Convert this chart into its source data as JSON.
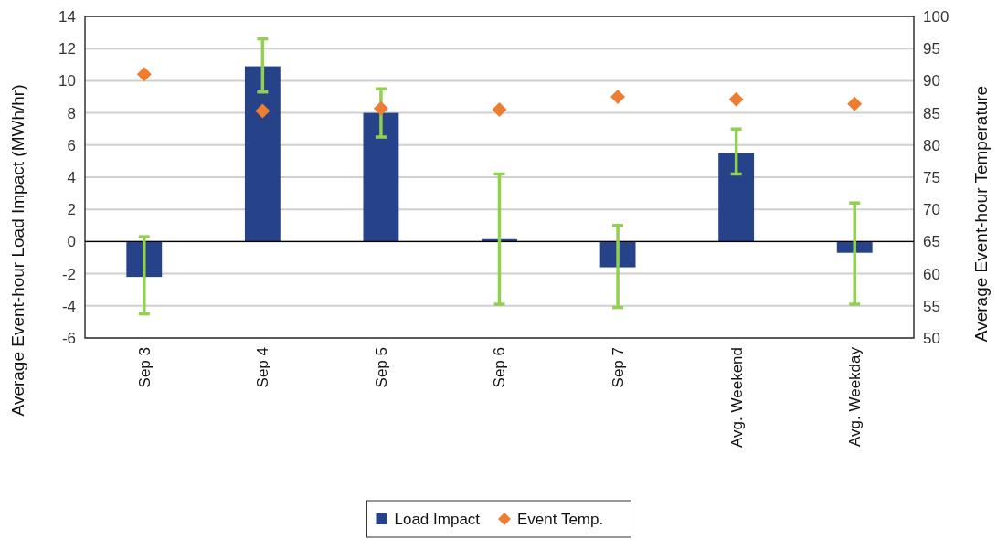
{
  "chart_data": {
    "type": "bar",
    "categories": [
      "Sep 3",
      "Sep 4",
      "Sep 5",
      "Sep 6",
      "Sep 7",
      "Avg. Weekend",
      "Avg. Weekday"
    ],
    "ylabel": "Average Event-hour Load Impact (MWh/hr)",
    "y2label": "Average Event-hour Temperature",
    "series": [
      {
        "name": "Load Impact",
        "color": "#264389",
        "values": [
          -2.2,
          10.9,
          8.0,
          0.15,
          -1.6,
          5.5,
          -0.7
        ],
        "errors": [
          [
            -4.5,
            0.3
          ],
          [
            9.3,
            12.6
          ],
          [
            6.5,
            9.5
          ],
          [
            -3.9,
            4.2
          ],
          [
            -4.1,
            1.0
          ],
          [
            4.2,
            7.0
          ],
          [
            -3.9,
            2.4
          ]
        ]
      },
      {
        "name": "Event Temp.",
        "type": "scatter",
        "axis": "y2",
        "color": "#ed7d31",
        "marker": "diamond",
        "values": [
          91.0,
          85.3,
          85.7,
          85.5,
          87.5,
          87.1,
          86.4
        ]
      }
    ],
    "ylim": [
      -6,
      14
    ],
    "yticks": [
      -6,
      -4,
      -2,
      0,
      2,
      4,
      6,
      8,
      10,
      12,
      14
    ],
    "y2lim": [
      50,
      100
    ],
    "y2ticks": [
      50,
      55,
      60,
      65,
      70,
      75,
      80,
      85,
      90,
      95,
      100
    ],
    "grid": "y",
    "legend": "bottom"
  }
}
